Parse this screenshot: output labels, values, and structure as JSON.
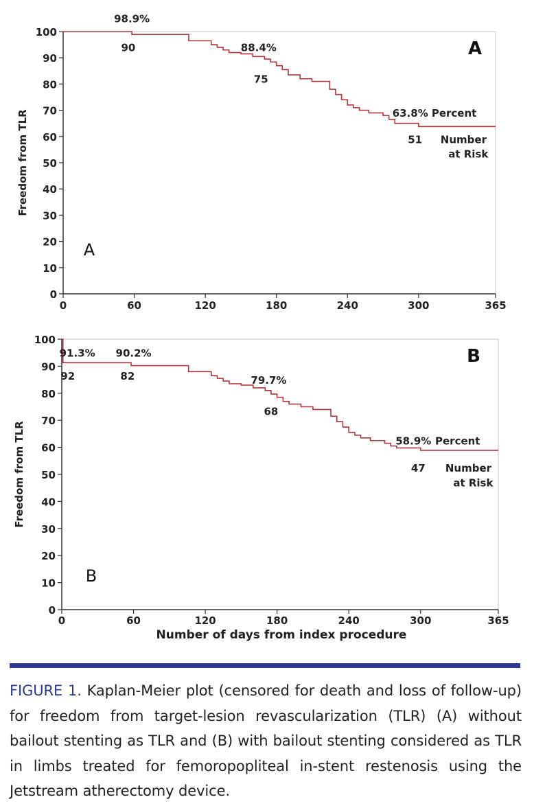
{
  "colors": {
    "curve": "#b5333a",
    "axis": "#333333",
    "caption_accent": "#2b3a8f",
    "caption_text": "#222222"
  },
  "chart_data": [
    {
      "type": "line",
      "panel_label": "A",
      "corner_label": "A",
      "ylabel": "Freedom from TLR",
      "xlabel": "",
      "xlim": [
        0,
        365
      ],
      "ylim": [
        0,
        100
      ],
      "x_ticks": [
        0,
        60,
        120,
        180,
        240,
        300,
        365
      ],
      "y_ticks": [
        0,
        10,
        20,
        30,
        40,
        50,
        60,
        70,
        80,
        90,
        100
      ],
      "grid": false,
      "series": [
        {
          "x": [
            0,
            10,
            20,
            40,
            58,
            80,
            100,
            106,
            125,
            130,
            135,
            140,
            150,
            160,
            165,
            170,
            175,
            180,
            185,
            190,
            200,
            210,
            225,
            230,
            235,
            240,
            245,
            250,
            258,
            270,
            275,
            280,
            300,
            365
          ],
          "y": [
            100,
            100,
            100,
            100,
            98.9,
            98.9,
            98.9,
            96.5,
            95.0,
            94.0,
            93.0,
            92.0,
            91.5,
            90.5,
            90.5,
            89.5,
            88.4,
            87.0,
            85.5,
            83.5,
            82.0,
            81.0,
            78.0,
            76.0,
            74.0,
            72.0,
            71.0,
            70.0,
            69.0,
            68.0,
            66.5,
            65.0,
            63.8,
            63.8
          ]
        }
      ],
      "annotations": [
        {
          "label": "98.9%",
          "x": 58,
          "y": 103.5
        },
        {
          "label": "90",
          "x": 55,
          "y": 92.5
        },
        {
          "label": "88.4%",
          "x": 165,
          "y": 92.5
        },
        {
          "label": "75",
          "x": 167,
          "y": 80.5
        },
        {
          "label": "63.8%",
          "x": 293,
          "y": 67.5
        },
        {
          "label": "Percent",
          "x": 330,
          "y": 67.5
        },
        {
          "label": "51",
          "x": 297,
          "y": 57.5
        },
        {
          "label": "Number",
          "x": 338,
          "y": 57.5
        },
        {
          "label": "at Risk",
          "x": 342,
          "y": 52.0
        }
      ]
    },
    {
      "type": "line",
      "panel_label": "B",
      "corner_label": "B",
      "ylabel": "Freedom from TLR",
      "xlabel": "Number of days from index procedure",
      "xlim": [
        0,
        365
      ],
      "ylim": [
        0,
        100
      ],
      "x_ticks": [
        0,
        60,
        120,
        180,
        240,
        300,
        365
      ],
      "y_ticks": [
        0,
        10,
        20,
        30,
        40,
        50,
        60,
        70,
        80,
        90,
        100
      ],
      "grid": false,
      "series": [
        {
          "x": [
            0,
            1,
            20,
            40,
            58,
            80,
            100,
            106,
            125,
            130,
            135,
            140,
            150,
            160,
            165,
            170,
            175,
            180,
            185,
            190,
            200,
            210,
            225,
            230,
            235,
            240,
            245,
            250,
            258,
            270,
            275,
            280,
            300,
            365
          ],
          "y": [
            100,
            91.3,
            91.3,
            91.3,
            90.2,
            90.2,
            90.2,
            88.0,
            86.5,
            85.5,
            84.5,
            83.5,
            83.0,
            82.0,
            82.0,
            81.0,
            79.7,
            78.5,
            77.0,
            76.0,
            75.0,
            74.0,
            71.5,
            69.5,
            67.5,
            65.5,
            64.5,
            63.5,
            62.5,
            61.5,
            60.5,
            59.8,
            58.9,
            58.9
          ]
        }
      ],
      "annotations": [
        {
          "label": "91.3%",
          "x": 13,
          "y": 93.5
        },
        {
          "label": "90.2%",
          "x": 60,
          "y": 93.5
        },
        {
          "label": "92",
          "x": 5,
          "y": 85.0
        },
        {
          "label": "82",
          "x": 55,
          "y": 85.0
        },
        {
          "label": "79.7%",
          "x": 173,
          "y": 83.5
        },
        {
          "label": "68",
          "x": 175,
          "y": 72.0
        },
        {
          "label": "58.9%",
          "x": 294,
          "y": 61.0
        },
        {
          "label": "Percent",
          "x": 331,
          "y": 61.0
        },
        {
          "label": "47",
          "x": 298,
          "y": 51.0
        },
        {
          "label": "Number",
          "x": 340,
          "y": 51.0
        },
        {
          "label": "at Risk",
          "x": 344,
          "y": 45.5
        }
      ]
    }
  ],
  "caption": {
    "label": "FIGURE 1.",
    "text": " Kaplan-Meier plot (censored for death and loss of follow-up) for freedom from target-lesion revascularization (TLR) (A) without bailout stenting as TLR and (B) with bailout stenting considered as TLR in limbs treated for femoropopliteal in-stent restenosis using the Jetstream atherectomy device."
  }
}
